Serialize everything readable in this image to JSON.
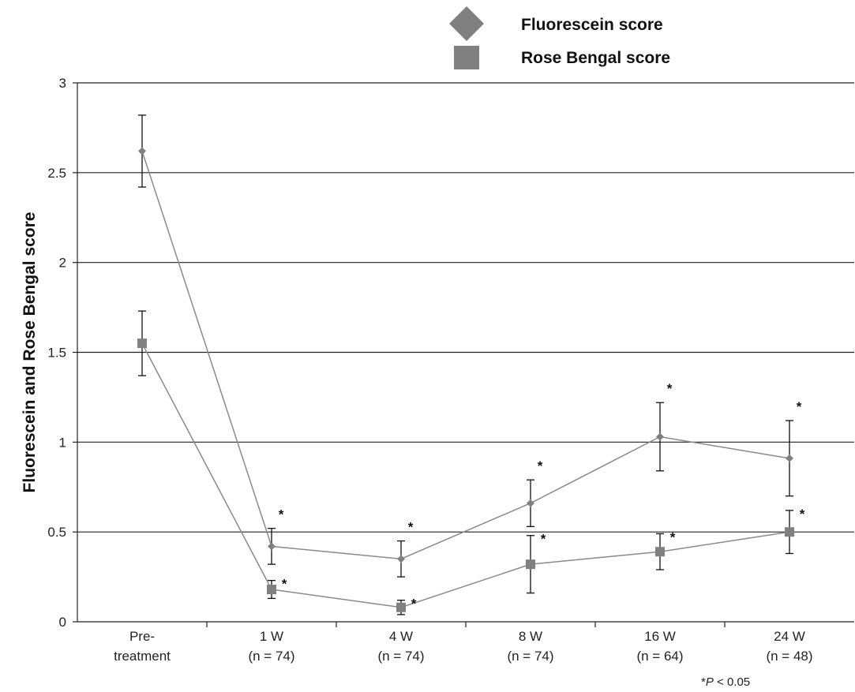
{
  "chart_data": {
    "type": "line",
    "title": "",
    "xlabel": "",
    "ylabel": "Fluorescein and Rose Bengal score",
    "ylim": [
      0,
      3
    ],
    "yticks": [
      "0",
      "0.5",
      "1",
      "1.5",
      "2",
      "2.5",
      "3"
    ],
    "grid": true,
    "legend_position": "top-center",
    "categories": [
      {
        "line1": "Pre-",
        "line2": "treatment"
      },
      {
        "line1": "1 W",
        "line2": "(n = 74)"
      },
      {
        "line1": "4 W",
        "line2": "(n = 74)"
      },
      {
        "line1": "8 W",
        "line2": "(n = 74)"
      },
      {
        "line1": "16 W",
        "line2": "(n = 64)"
      },
      {
        "line1": "24 W",
        "line2": "(n = 48)"
      }
    ],
    "series": [
      {
        "name": "Fluorescein score",
        "marker": "diamond",
        "color": "#808080",
        "values": [
          2.62,
          0.42,
          0.35,
          0.66,
          1.03,
          0.91
        ],
        "error": [
          0.2,
          0.1,
          0.1,
          0.13,
          0.19,
          0.21
        ],
        "significance": [
          "",
          "*",
          "*",
          "*",
          "*",
          "*"
        ]
      },
      {
        "name": "Rose Bengal score",
        "marker": "square",
        "color": "#808080",
        "values": [
          1.55,
          0.18,
          0.08,
          0.32,
          0.39,
          0.5
        ],
        "error": [
          0.18,
          0.05,
          0.04,
          0.16,
          0.1,
          0.12
        ],
        "significance": [
          "",
          "*",
          "*",
          "*",
          "*",
          "*"
        ]
      }
    ],
    "footnote": {
      "prefix": "*",
      "italic": "P",
      "suffix": " < 0.05"
    }
  }
}
